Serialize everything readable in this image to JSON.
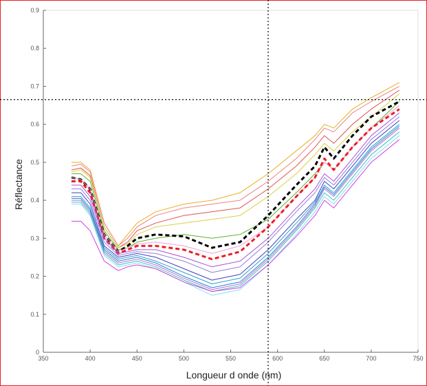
{
  "chart_data": {
    "type": "line",
    "title": "",
    "xlabel": "Longueur d onde (nm)",
    "ylabel": "Réflectance",
    "xlim": [
      350,
      750
    ],
    "ylim": [
      0,
      0.9
    ],
    "xticks": [
      350,
      400,
      450,
      500,
      550,
      600,
      650,
      700,
      750
    ],
    "xtick_labels": [
      "350",
      "400",
      "450",
      "500",
      "550",
      "600",
      "650",
      "700",
      "750"
    ],
    "yticks": [
      0,
      0.1,
      0.2,
      0.3,
      0.4,
      0.5,
      0.6,
      0.7,
      0.8,
      0.9
    ],
    "ytick_labels": [
      "0",
      "0.1",
      "0.2",
      "0.3",
      "0.4",
      "0.5",
      "0.6",
      "0.7",
      "0.8",
      "0.9"
    ],
    "grid": false,
    "legend": "none",
    "x": [
      380,
      390,
      400,
      415,
      430,
      440,
      450,
      470,
      500,
      530,
      560,
      590,
      620,
      640,
      650,
      660,
      680,
      700,
      730
    ],
    "series": [
      {
        "color": "#e6b020",
        "width": 1,
        "dash": "",
        "values": [
          0.5,
          0.5,
          0.48,
          0.34,
          0.28,
          0.31,
          0.34,
          0.37,
          0.39,
          0.4,
          0.42,
          0.47,
          0.53,
          0.57,
          0.6,
          0.59,
          0.64,
          0.67,
          0.71
        ]
      },
      {
        "color": "#f08080",
        "width": 1,
        "dash": "",
        "values": [
          0.49,
          0.495,
          0.475,
          0.34,
          0.28,
          0.3,
          0.33,
          0.36,
          0.38,
          0.39,
          0.4,
          0.45,
          0.51,
          0.56,
          0.59,
          0.58,
          0.63,
          0.66,
          0.7
        ]
      },
      {
        "color": "#e05050",
        "width": 1,
        "dash": "",
        "values": [
          0.48,
          0.485,
          0.465,
          0.33,
          0.275,
          0.29,
          0.32,
          0.34,
          0.36,
          0.37,
          0.38,
          0.43,
          0.49,
          0.54,
          0.57,
          0.55,
          0.6,
          0.64,
          0.69
        ]
      },
      {
        "color": "#d8d040",
        "width": 1,
        "dash": "",
        "values": [
          0.475,
          0.48,
          0.46,
          0.33,
          0.275,
          0.285,
          0.31,
          0.33,
          0.34,
          0.35,
          0.36,
          0.41,
          0.47,
          0.52,
          0.55,
          0.53,
          0.58,
          0.62,
          0.68
        ]
      },
      {
        "color": "#60b030",
        "width": 1,
        "dash": "",
        "values": [
          0.47,
          0.47,
          0.45,
          0.32,
          0.27,
          0.275,
          0.29,
          0.3,
          0.31,
          0.3,
          0.31,
          0.35,
          0.42,
          0.47,
          0.5,
          0.48,
          0.54,
          0.59,
          0.66
        ]
      },
      {
        "color": "#000000",
        "width": 3,
        "dash": "6,4",
        "values": [
          0.46,
          0.455,
          0.43,
          0.31,
          0.265,
          0.28,
          0.3,
          0.31,
          0.305,
          0.275,
          0.29,
          0.36,
          0.44,
          0.49,
          0.54,
          0.51,
          0.57,
          0.62,
          0.66
        ]
      },
      {
        "color": "#f0a0d0",
        "width": 1,
        "dash": "",
        "values": [
          0.46,
          0.455,
          0.43,
          0.31,
          0.265,
          0.275,
          0.285,
          0.29,
          0.28,
          0.26,
          0.28,
          0.33,
          0.41,
          0.46,
          0.5,
          0.48,
          0.54,
          0.59,
          0.65
        ]
      },
      {
        "color": "#ee1c24",
        "width": 3,
        "dash": "6,4",
        "values": [
          0.45,
          0.45,
          0.42,
          0.3,
          0.26,
          0.27,
          0.28,
          0.28,
          0.27,
          0.245,
          0.265,
          0.33,
          0.41,
          0.46,
          0.51,
          0.48,
          0.54,
          0.59,
          0.64
        ]
      },
      {
        "color": "#b050d0",
        "width": 1,
        "dash": "",
        "values": [
          0.44,
          0.44,
          0.41,
          0.3,
          0.26,
          0.265,
          0.27,
          0.27,
          0.25,
          0.225,
          0.24,
          0.3,
          0.38,
          0.43,
          0.47,
          0.45,
          0.51,
          0.57,
          0.63
        ]
      },
      {
        "color": "#9080e0",
        "width": 1,
        "dash": "",
        "values": [
          0.43,
          0.43,
          0.4,
          0.29,
          0.255,
          0.26,
          0.265,
          0.26,
          0.24,
          0.21,
          0.225,
          0.29,
          0.37,
          0.42,
          0.46,
          0.44,
          0.5,
          0.56,
          0.62
        ]
      },
      {
        "color": "#4040c0",
        "width": 1,
        "dash": "",
        "values": [
          0.42,
          0.42,
          0.39,
          0.28,
          0.25,
          0.255,
          0.26,
          0.25,
          0.22,
          0.19,
          0.205,
          0.27,
          0.35,
          0.4,
          0.45,
          0.43,
          0.49,
          0.55,
          0.61
        ]
      },
      {
        "color": "#30a0d0",
        "width": 1,
        "dash": "",
        "values": [
          0.41,
          0.41,
          0.38,
          0.275,
          0.245,
          0.25,
          0.255,
          0.24,
          0.21,
          0.18,
          0.195,
          0.26,
          0.34,
          0.395,
          0.44,
          0.42,
          0.48,
          0.54,
          0.6
        ]
      },
      {
        "color": "#2080e0",
        "width": 1,
        "dash": "",
        "values": [
          0.405,
          0.405,
          0.375,
          0.27,
          0.24,
          0.245,
          0.25,
          0.235,
          0.2,
          0.17,
          0.185,
          0.25,
          0.33,
          0.39,
          0.435,
          0.415,
          0.475,
          0.535,
          0.595
        ]
      },
      {
        "color": "#c070c0",
        "width": 1,
        "dash": "",
        "values": [
          0.4,
          0.4,
          0.37,
          0.265,
          0.235,
          0.24,
          0.245,
          0.23,
          0.195,
          0.165,
          0.18,
          0.245,
          0.325,
          0.385,
          0.43,
          0.41,
          0.47,
          0.53,
          0.59
        ]
      },
      {
        "color": "#40c0c0",
        "width": 1,
        "dash": "",
        "values": [
          0.395,
          0.395,
          0.365,
          0.26,
          0.23,
          0.235,
          0.24,
          0.225,
          0.19,
          0.16,
          0.175,
          0.24,
          0.32,
          0.38,
          0.42,
          0.4,
          0.46,
          0.52,
          0.58
        ]
      },
      {
        "color": "#80e0f0",
        "width": 1,
        "dash": "",
        "values": [
          0.39,
          0.39,
          0.36,
          0.255,
          0.225,
          0.23,
          0.235,
          0.22,
          0.185,
          0.15,
          0.165,
          0.23,
          0.31,
          0.37,
          0.41,
          0.39,
          0.45,
          0.51,
          0.57
        ]
      },
      {
        "color": "#d040e0",
        "width": 1,
        "dash": "",
        "values": [
          0.345,
          0.345,
          0.32,
          0.24,
          0.215,
          0.225,
          0.23,
          0.22,
          0.185,
          0.16,
          0.17,
          0.23,
          0.305,
          0.36,
          0.4,
          0.38,
          0.44,
          0.5,
          0.56
        ]
      }
    ],
    "reference_lines": {
      "vertical_x": 590,
      "horizontal_y": 0.665,
      "style": "dotted",
      "color": "#000000"
    }
  }
}
